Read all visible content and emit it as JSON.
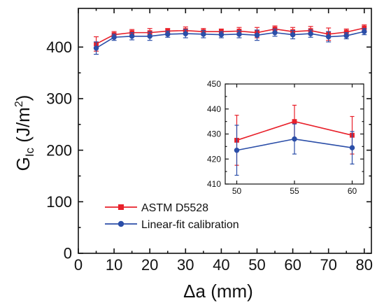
{
  "chart_data": [
    {
      "type": "line",
      "title": "",
      "xlabel": "Δa (mm)",
      "ylabel": "G",
      "ylabel_subscript": "Ic",
      "ylabel_unit_prefix": " (J/m",
      "ylabel_unit_power": "2",
      "ylabel_unit_suffix": ")",
      "xlim": [
        0,
        82
      ],
      "ylim": [
        0,
        475
      ],
      "xticks": [
        0,
        10,
        20,
        30,
        40,
        50,
        60,
        70,
        80
      ],
      "yticks": [
        0,
        100,
        200,
        300,
        400
      ],
      "grid": false,
      "legend_position": "bottom-left",
      "x": [
        5,
        10,
        15,
        20,
        25,
        30,
        35,
        40,
        45,
        50,
        55,
        60,
        65,
        70,
        75,
        80
      ],
      "series": [
        {
          "name": "ASTM D5528",
          "color": "#e8202a",
          "marker": "square",
          "values": [
            406,
            424,
            428,
            428,
            431,
            432,
            430,
            430,
            431,
            428,
            435,
            430,
            432,
            425,
            429,
            437
          ],
          "errors": [
            14,
            6,
            6,
            8,
            5,
            7,
            6,
            5,
            7,
            10,
            6,
            8,
            8,
            12,
            6,
            6
          ]
        },
        {
          "name": "Linear-fit calibration",
          "color": "#2b4ea8",
          "marker": "circle",
          "values": [
            398,
            419,
            421,
            421,
            425,
            426,
            425,
            424,
            425,
            423,
            428,
            424,
            426,
            420,
            422,
            430
          ],
          "errors": [
            12,
            6,
            7,
            8,
            6,
            8,
            7,
            6,
            7,
            10,
            7,
            8,
            7,
            10,
            6,
            6
          ]
        }
      ]
    },
    {
      "type": "line",
      "title": "",
      "xlabel": "",
      "ylabel": "",
      "xlim": [
        49,
        61
      ],
      "ylim": [
        410,
        450
      ],
      "xticks": [
        50,
        55,
        60
      ],
      "yticks": [
        410,
        420,
        430,
        440,
        450
      ],
      "grid": false,
      "x": [
        50,
        55,
        60
      ],
      "series": [
        {
          "color": "#e8202a",
          "marker": "square",
          "values": [
            427.5,
            435,
            429.5
          ],
          "errors": [
            10,
            6.5,
            7.5
          ]
        },
        {
          "color": "#2b4ea8",
          "marker": "circle",
          "values": [
            423.5,
            428,
            424.5
          ],
          "errors": [
            10,
            6,
            6.5
          ]
        }
      ]
    }
  ]
}
